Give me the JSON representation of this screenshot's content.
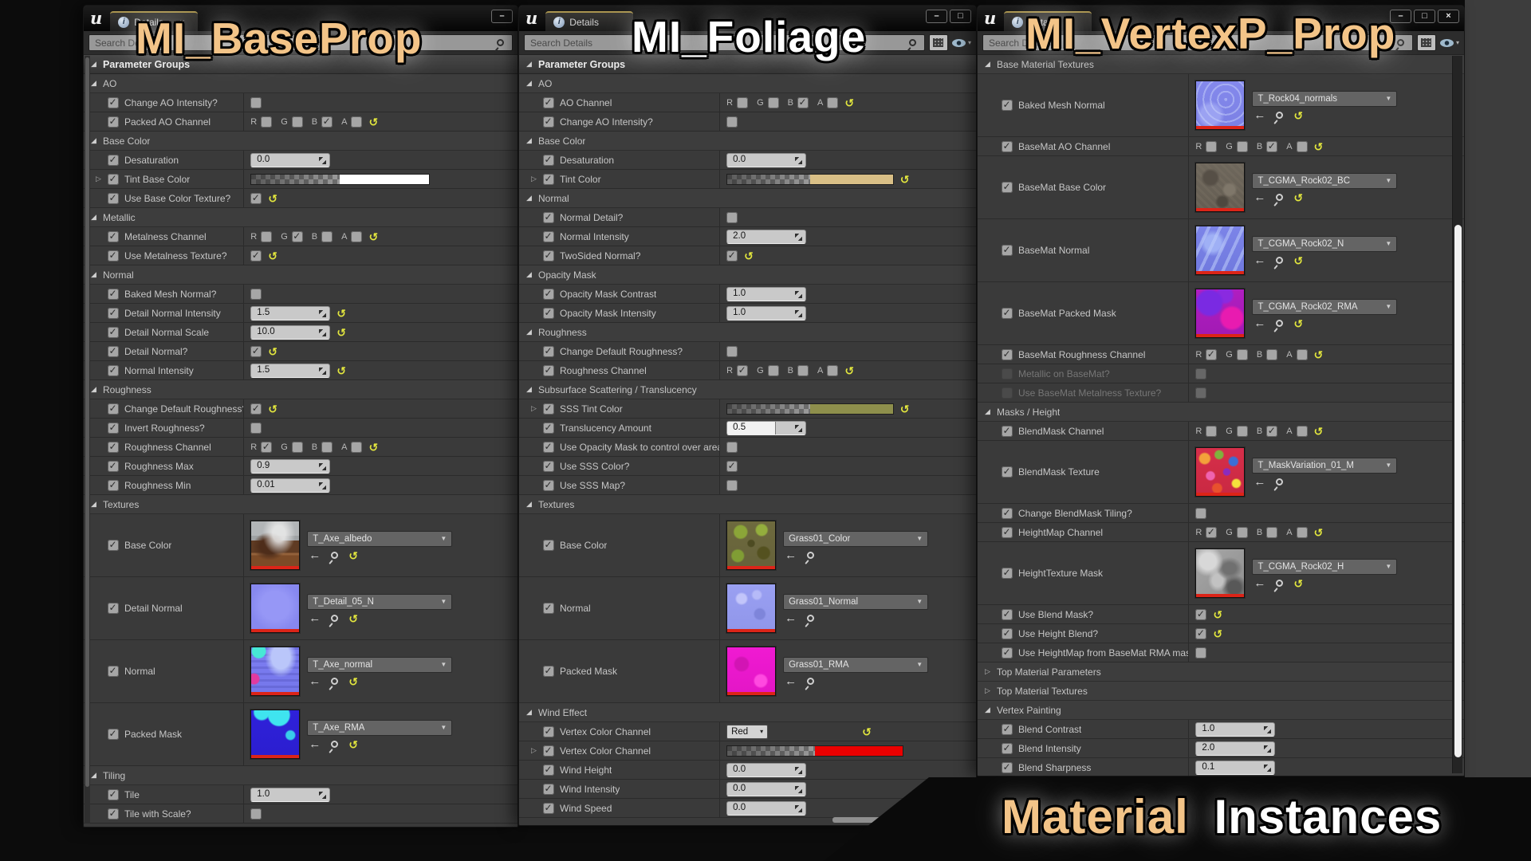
{
  "titles": {
    "left": "MI_BaseProp",
    "middle": "MI_Foliage",
    "right": "MI_VertexP_Prop",
    "bottom_word1": "Material",
    "bottom_word2": "Instances"
  },
  "colors": {
    "title_tan": "#f3c488",
    "title_white": "#ffffff",
    "reset_yellow": "#e5e93e",
    "thumbnail_stripe_red": "#dc2418",
    "tab_highlight": "#aa954f"
  },
  "channel_letters": [
    "R",
    "G",
    "B",
    "A"
  ],
  "icons": {
    "logo": "u",
    "info": "i",
    "tab_close": "×",
    "minimize": "–",
    "maximize": "□",
    "close": "×",
    "expanded": "◢",
    "collapsed": "▷",
    "reset": "↺",
    "back": "←",
    "caret_down": "▼",
    "caret_small": "▾"
  },
  "panels": [
    {
      "tab": "Details",
      "search_placeholder": "Search Details",
      "split": "37%",
      "buttons": [
        "minimize"
      ],
      "tab_close": true,
      "toolbar": [],
      "rows": [
        {
          "t": "section",
          "label": "Parameter Groups"
        },
        {
          "t": "group",
          "label": "AO"
        },
        {
          "t": "p",
          "label": "Change AO Intensity?",
          "v": {
            "t": "check",
            "on": false,
            "reset": false
          }
        },
        {
          "t": "p",
          "label": "Packed AO Channel",
          "v": {
            "t": "ch",
            "on": "B"
          }
        },
        {
          "t": "group",
          "label": "Base Color"
        },
        {
          "t": "p",
          "label": "Desaturation",
          "v": {
            "t": "num",
            "val": "0.0",
            "reset": false
          }
        },
        {
          "t": "p",
          "label": "Tint Base Color",
          "pre": true,
          "v": {
            "t": "color",
            "c": "#ffffff",
            "reset": false
          }
        },
        {
          "t": "p",
          "label": "Use Base Color Texture?",
          "v": {
            "t": "check",
            "on": true,
            "reset": true
          }
        },
        {
          "t": "group",
          "label": "Metallic"
        },
        {
          "t": "p",
          "label": "Metalness Channel",
          "v": {
            "t": "ch",
            "on": "G"
          }
        },
        {
          "t": "p",
          "label": "Use Metalness Texture?",
          "v": {
            "t": "check",
            "on": true,
            "reset": true
          }
        },
        {
          "t": "group",
          "label": "Normal"
        },
        {
          "t": "p",
          "label": "Baked Mesh Normal?",
          "v": {
            "t": "check",
            "on": false,
            "reset": false
          }
        },
        {
          "t": "p",
          "label": "Detail Normal Intensity",
          "v": {
            "t": "num",
            "val": "1.5",
            "reset": true
          }
        },
        {
          "t": "p",
          "label": "Detail Normal Scale",
          "v": {
            "t": "num",
            "val": "10.0",
            "reset": true
          }
        },
        {
          "t": "p",
          "label": "Detail Normal?",
          "v": {
            "t": "check",
            "on": true,
            "reset": true
          }
        },
        {
          "t": "p",
          "label": "Normal Intensity",
          "v": {
            "t": "num",
            "val": "1.5",
            "reset": true
          }
        },
        {
          "t": "group",
          "label": "Roughness"
        },
        {
          "t": "p",
          "label": "Change Default Roughness?",
          "v": {
            "t": "check",
            "on": true,
            "reset": true
          }
        },
        {
          "t": "p",
          "label": "Invert Roughness?",
          "v": {
            "t": "check",
            "on": false,
            "reset": false
          }
        },
        {
          "t": "p",
          "label": "Roughness Channel",
          "v": {
            "t": "ch",
            "on": "R"
          }
        },
        {
          "t": "p",
          "label": "Roughness Max",
          "v": {
            "t": "num",
            "val": "0.9",
            "reset": false
          }
        },
        {
          "t": "p",
          "label": "Roughness Min",
          "v": {
            "t": "num",
            "val": "0.01",
            "reset": false
          }
        },
        {
          "t": "group",
          "label": "Textures"
        },
        {
          "t": "p",
          "tex": true,
          "label": "Base Color",
          "v": {
            "t": "tex",
            "name": "T_Axe_albedo",
            "style": "axe-albedo",
            "reset": true
          }
        },
        {
          "t": "p",
          "tex": true,
          "label": "Detail Normal",
          "v": {
            "t": "tex",
            "name": "T_Detail_05_N",
            "style": "detail-n",
            "reset": true
          }
        },
        {
          "t": "p",
          "tex": true,
          "label": "Normal",
          "v": {
            "t": "tex",
            "name": "T_Axe_normal",
            "style": "axe-normal",
            "reset": true
          }
        },
        {
          "t": "p",
          "tex": true,
          "label": "Packed Mask",
          "v": {
            "t": "tex",
            "name": "T_Axe_RMA",
            "style": "axe-rma",
            "reset": true
          }
        },
        {
          "t": "group",
          "label": "Tiling"
        },
        {
          "t": "p",
          "label": "Tile",
          "v": {
            "t": "num",
            "val": "1.0",
            "reset": false
          }
        },
        {
          "t": "p",
          "label": "Tile with Scale?",
          "v": {
            "t": "check",
            "on": false,
            "reset": false
          }
        }
      ]
    },
    {
      "tab": "Details",
      "search_placeholder": "Search Details",
      "split": "44%",
      "buttons": [
        "minimize",
        "maximize"
      ],
      "tab_close": false,
      "toolbar": [
        "grid",
        "eye"
      ],
      "rows": [
        {
          "t": "section",
          "label": "Parameter Groups"
        },
        {
          "t": "group",
          "label": "AO"
        },
        {
          "t": "p",
          "label": "AO Channel",
          "v": {
            "t": "ch",
            "on": "B"
          }
        },
        {
          "t": "p",
          "label": "Change AO Intensity?",
          "v": {
            "t": "check",
            "on": false,
            "reset": false
          }
        },
        {
          "t": "group",
          "label": "Base Color"
        },
        {
          "t": "p",
          "label": "Desaturation",
          "v": {
            "t": "num",
            "val": "0.0",
            "reset": false
          }
        },
        {
          "t": "p",
          "label": "Tint Color",
          "pre": true,
          "v": {
            "t": "color",
            "c": "#d9bf86",
            "reset": true
          }
        },
        {
          "t": "group",
          "label": "Normal"
        },
        {
          "t": "p",
          "label": "Normal Detail?",
          "v": {
            "t": "check",
            "on": false,
            "reset": false
          }
        },
        {
          "t": "p",
          "label": "Normal Intensity",
          "v": {
            "t": "num",
            "val": "2.0",
            "reset": false
          }
        },
        {
          "t": "p",
          "label": "TwoSided Normal?",
          "v": {
            "t": "check",
            "on": true,
            "reset": true
          }
        },
        {
          "t": "group",
          "label": "Opacity Mask"
        },
        {
          "t": "p",
          "label": "Opacity Mask Contrast",
          "v": {
            "t": "num",
            "val": "1.0",
            "reset": false
          }
        },
        {
          "t": "p",
          "label": "Opacity Mask Intensity",
          "v": {
            "t": "num",
            "val": "1.0",
            "reset": false
          }
        },
        {
          "t": "group",
          "label": "Roughness"
        },
        {
          "t": "p",
          "label": "Change Default Roughness?",
          "v": {
            "t": "check",
            "on": false,
            "reset": false
          }
        },
        {
          "t": "p",
          "label": "Roughness Channel",
          "v": {
            "t": "ch",
            "on": "R"
          }
        },
        {
          "t": "group",
          "label": "Subsurface Scattering / Translucency"
        },
        {
          "t": "p",
          "label": "SSS Tint Color",
          "pre": true,
          "v": {
            "t": "color",
            "c": "#8e8f4c",
            "reset": true
          }
        },
        {
          "t": "p",
          "label": "Translucency Amount",
          "v": {
            "t": "num",
            "val": "0.5",
            "reset": false,
            "fill": 0.62
          }
        },
        {
          "t": "p",
          "label": "Use Opacity Mask to control over areas?",
          "v": {
            "t": "check",
            "on": false,
            "reset": false
          }
        },
        {
          "t": "p",
          "label": "Use SSS Color?",
          "v": {
            "t": "check",
            "on": true,
            "reset": false
          }
        },
        {
          "t": "p",
          "label": "Use SSS Map?",
          "v": {
            "t": "check",
            "on": false,
            "reset": false
          }
        },
        {
          "t": "group",
          "label": "Textures"
        },
        {
          "t": "p",
          "tex": true,
          "label": "Base Color",
          "v": {
            "t": "tex",
            "name": "Grass01_Color",
            "style": "grass-color",
            "reset": false
          }
        },
        {
          "t": "p",
          "tex": true,
          "label": "Normal",
          "v": {
            "t": "tex",
            "name": "Grass01_Normal",
            "style": "grass-normal",
            "reset": false
          }
        },
        {
          "t": "p",
          "tex": true,
          "label": "Packed Mask",
          "v": {
            "t": "tex",
            "name": "Grass01_RMA",
            "style": "grass-rma",
            "reset": false
          }
        },
        {
          "t": "group",
          "label": "Wind Effect"
        },
        {
          "t": "p",
          "label": "Vertex Color Channel",
          "v": {
            "t": "combo",
            "val": "Red",
            "reset": true
          }
        },
        {
          "t": "p",
          "label": "Vertex Color Channel",
          "pre": true,
          "v": {
            "t": "color",
            "c": "#ea0000",
            "reset": false,
            "long": true
          }
        },
        {
          "t": "p",
          "label": "Wind Height",
          "v": {
            "t": "num",
            "val": "0.0",
            "reset": false
          }
        },
        {
          "t": "p",
          "label": "Wind Intensity",
          "v": {
            "t": "num",
            "val": "0.0",
            "reset": false
          }
        },
        {
          "t": "p",
          "label": "Wind Speed",
          "v": {
            "t": "num",
            "val": "0.0",
            "reset": false
          }
        }
      ]
    },
    {
      "tab": "Details",
      "search_placeholder": "Search Details",
      "split": "43.5%",
      "buttons": [
        "minimize",
        "maximize",
        "close"
      ],
      "tab_close": false,
      "toolbar": [
        "grid",
        "eye"
      ],
      "rows": [
        {
          "t": "group",
          "label": "Base Material Textures"
        },
        {
          "t": "p",
          "tex": true,
          "label": "Baked Mesh Normal",
          "v": {
            "t": "tex",
            "name": "T_Rock04_normals",
            "style": "rock04-n",
            "reset": true
          }
        },
        {
          "t": "p",
          "label": "BaseMat AO Channel",
          "v": {
            "t": "ch",
            "on": "B"
          }
        },
        {
          "t": "p",
          "tex": true,
          "label": "BaseMat Base Color",
          "v": {
            "t": "tex",
            "name": "T_CGMA_Rock02_BC",
            "style": "rock02-bc",
            "reset": true
          }
        },
        {
          "t": "p",
          "tex": true,
          "label": "BaseMat Normal",
          "v": {
            "t": "tex",
            "name": "T_CGMA_Rock02_N",
            "style": "rock02-n",
            "reset": true
          }
        },
        {
          "t": "p",
          "tex": true,
          "label": "BaseMat Packed Mask",
          "v": {
            "t": "tex",
            "name": "T_CGMA_Rock02_RMA",
            "style": "rock02-rma",
            "reset": true
          }
        },
        {
          "t": "p",
          "label": "BaseMat Roughness Channel",
          "v": {
            "t": "ch",
            "on": "R"
          }
        },
        {
          "t": "p",
          "label": "Metallic on BaseMat?",
          "dis": true,
          "v": {
            "t": "check",
            "on": false,
            "reset": false
          }
        },
        {
          "t": "p",
          "label": "Use BaseMat Metalness Texture?",
          "dis": true,
          "v": {
            "t": "check",
            "on": false,
            "reset": false
          }
        },
        {
          "t": "group",
          "label": "Masks / Height"
        },
        {
          "t": "p",
          "label": "BlendMask Channel",
          "v": {
            "t": "ch",
            "on": "B"
          }
        },
        {
          "t": "p",
          "tex": true,
          "label": "BlendMask Texture",
          "v": {
            "t": "tex",
            "name": "T_MaskVariation_01_M",
            "style": "maskvar",
            "reset": false
          }
        },
        {
          "t": "p",
          "label": "Change BlendMask Tiling?",
          "v": {
            "t": "check",
            "on": false,
            "reset": false
          }
        },
        {
          "t": "p",
          "label": "HeightMap Channel",
          "v": {
            "t": "ch",
            "on": "R"
          }
        },
        {
          "t": "p",
          "tex": true,
          "label": "HeightTexture Mask",
          "v": {
            "t": "tex",
            "name": "T_CGMA_Rock02_H",
            "style": "rock02-h",
            "reset": true
          }
        },
        {
          "t": "p",
          "label": "Use Blend Mask?",
          "v": {
            "t": "check",
            "on": true,
            "reset": true
          }
        },
        {
          "t": "p",
          "label": "Use Height Blend?",
          "v": {
            "t": "check",
            "on": true,
            "reset": true
          }
        },
        {
          "t": "p",
          "label": "Use HeightMap from BaseMat RMA mask?",
          "v": {
            "t": "check",
            "on": false,
            "reset": false
          }
        },
        {
          "t": "group",
          "label": "Top Material Parameters",
          "collapsed": true
        },
        {
          "t": "group",
          "label": "Top Material Textures",
          "collapsed": true
        },
        {
          "t": "group",
          "label": "Vertex Painting"
        },
        {
          "t": "p",
          "label": "Blend Contrast",
          "v": {
            "t": "num",
            "val": "1.0",
            "reset": false
          }
        },
        {
          "t": "p",
          "label": "Blend Intensity",
          "v": {
            "t": "num",
            "val": "2.0",
            "reset": false
          }
        },
        {
          "t": "p",
          "label": "Blend Sharpness",
          "v": {
            "t": "num",
            "val": "0.1",
            "reset": false
          }
        }
      ]
    }
  ]
}
